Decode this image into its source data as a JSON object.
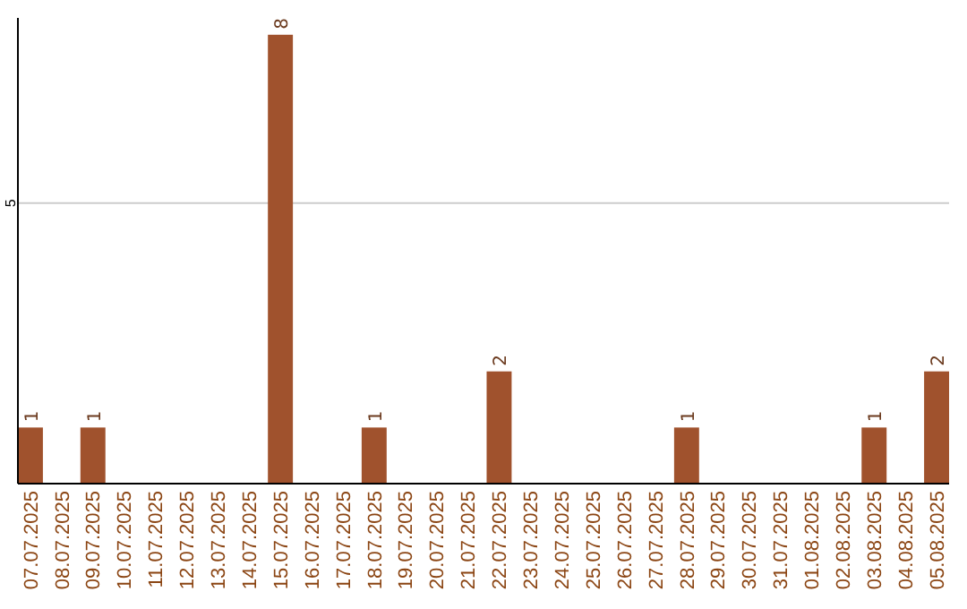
{
  "chart_data": {
    "type": "bar",
    "categories": [
      "07.07.2025",
      "08.07.2025",
      "09.07.2025",
      "10.07.2025",
      "11.07.2025",
      "12.07.2025",
      "13.07.2025",
      "14.07.2025",
      "15.07.2025",
      "16.07.2025",
      "17.07.2025",
      "18.07.2025",
      "19.07.2025",
      "20.07.2025",
      "21.07.2025",
      "22.07.2025",
      "23.07.2025",
      "24.07.2025",
      "25.07.2025",
      "26.07.2025",
      "27.07.2025",
      "28.07.2025",
      "29.07.2025",
      "30.07.2025",
      "31.07.2025",
      "01.08.2025",
      "02.08.2025",
      "03.08.2025",
      "04.08.2025",
      "05.08.2025"
    ],
    "values": [
      1,
      0,
      1,
      0,
      0,
      0,
      0,
      0,
      8,
      0,
      0,
      1,
      0,
      0,
      0,
      2,
      0,
      0,
      0,
      0,
      0,
      1,
      0,
      0,
      0,
      0,
      0,
      1,
      0,
      2
    ],
    "value_labels": [
      "1",
      null,
      "1",
      null,
      null,
      null,
      null,
      null,
      "8",
      null,
      null,
      "1",
      null,
      null,
      null,
      "2",
      null,
      null,
      null,
      null,
      null,
      "1",
      null,
      null,
      null,
      null,
      null,
      "1",
      null,
      "2"
    ],
    "color": "#a0522d",
    "ylim": [
      0,
      8.3
    ],
    "yticks": [
      5
    ],
    "grid": "y"
  }
}
